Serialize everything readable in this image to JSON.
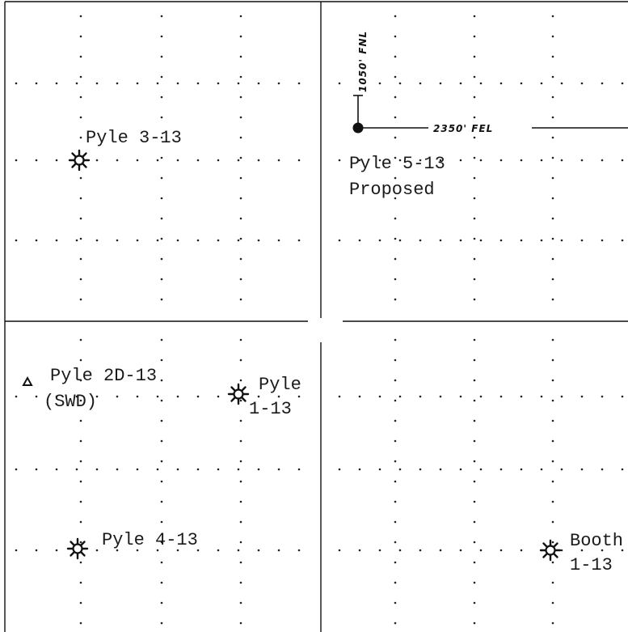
{
  "plat": {
    "wells": [
      {
        "id": "pyle-3-13",
        "type": "producing",
        "label": [
          "Pyle 3-13"
        ]
      },
      {
        "id": "pyle-5-13",
        "type": "proposed",
        "label": [
          "Pyle 5-13",
          "Proposed"
        ]
      },
      {
        "id": "pyle-2d-13",
        "type": "disposal",
        "label": [
          "Pyle 2D-13",
          "(SWD)"
        ]
      },
      {
        "id": "pyle-1-13",
        "type": "producing",
        "label": [
          "Pyle",
          "1-13"
        ]
      },
      {
        "id": "pyle-4-13",
        "type": "producing",
        "label": [
          "Pyle 4-13"
        ]
      },
      {
        "id": "booth-1-13",
        "type": "producing",
        "label": [
          "Booth",
          "1-13"
        ]
      }
    ],
    "dimensions": {
      "fnl": "1050' FNL",
      "fel": "2350' FEL"
    },
    "colors": {
      "ink": "#111111",
      "paper": "#ffffff"
    }
  }
}
